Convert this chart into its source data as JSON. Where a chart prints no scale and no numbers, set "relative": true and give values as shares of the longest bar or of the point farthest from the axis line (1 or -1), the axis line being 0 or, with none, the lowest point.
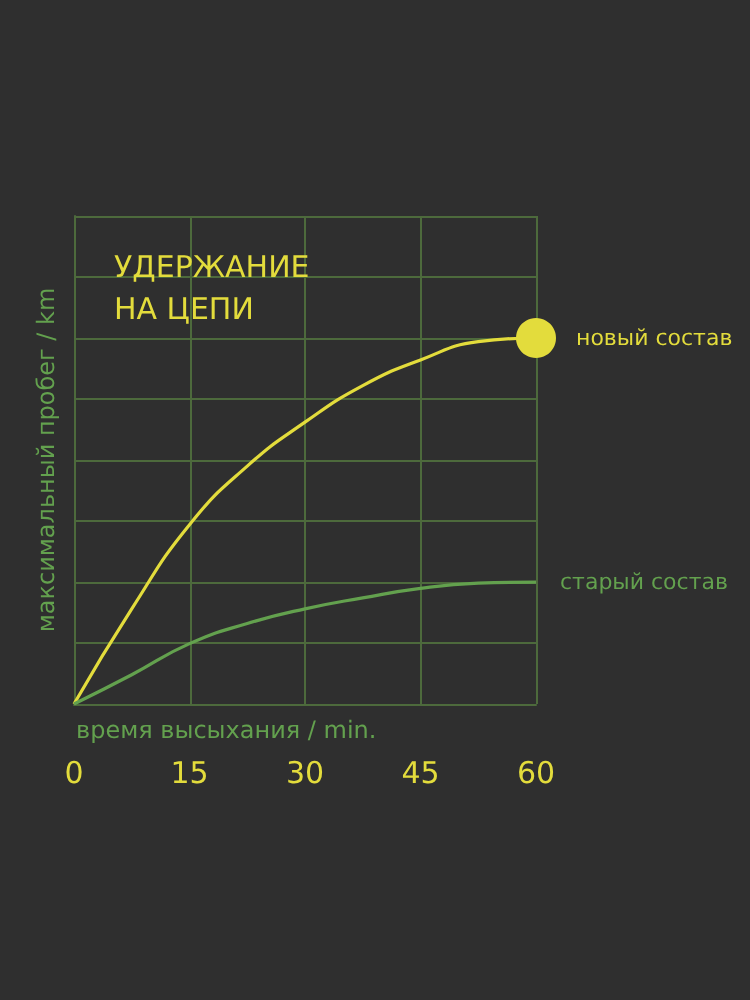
{
  "chart_data": {
    "type": "line",
    "title": "УДЕРЖАНИЕ НА ЦЕПИ",
    "xlabel": "время высыхания / min.",
    "ylabel": "максимальный пробег / km",
    "relative": true,
    "x": [
      0,
      7.5,
      15,
      22.5,
      30,
      37.5,
      45,
      52.5,
      60
    ],
    "xlim": [
      0,
      60
    ],
    "xticks": [
      0,
      15,
      30,
      45,
      60
    ],
    "grid": true,
    "legend": false,
    "marker": "none",
    "series": [
      {
        "name": "новый состав",
        "color": "#e3dc3c",
        "values": [
          0,
          0.26,
          0.49,
          0.65,
          0.77,
          0.87,
          0.94,
          0.99,
          1
        ]
      },
      {
        "name": "старый состав",
        "color": "#63a14e",
        "values": [
          0,
          0.08,
          0.165,
          0.22,
          0.26,
          0.29,
          0.316,
          0.33,
          0.333
        ]
      }
    ]
  }
}
